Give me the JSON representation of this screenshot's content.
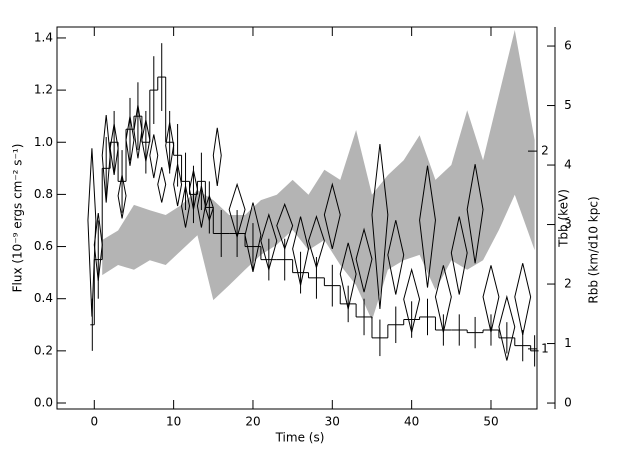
{
  "chart_data": {
    "type": "composite",
    "xlabel": "Time (s)",
    "ylabel": "Flux (10⁻⁹ ergs cm⁻² s⁻¹)",
    "y2label": "Rbb (km/d10 kpc)",
    "y3label": "Tbb (keV)",
    "xlim": [
      -4.7,
      55.8
    ],
    "xticks": [
      0,
      10,
      20,
      30,
      40,
      50
    ],
    "ylim": [
      -0.023,
      1.442
    ],
    "yticks": [
      {
        "value": 0,
        "label": "0.0"
      },
      {
        "value": 0.2,
        "label": "0.2"
      },
      {
        "value": 0.4,
        "label": "0.4"
      },
      {
        "value": 0.6,
        "label": "0.6"
      },
      {
        "value": 0.8,
        "label": "0.8"
      },
      {
        "value": 1,
        "label": "1.0"
      },
      {
        "value": 1.2,
        "label": "1.2"
      },
      {
        "value": 1.4,
        "label": "1.4"
      }
    ],
    "y2lim": [
      -0.1,
      6.32
    ],
    "y2ticks": [
      0,
      1,
      2,
      3,
      4,
      5,
      6
    ],
    "y3lim": [
      0.81,
      3.09
    ],
    "y3ticks": [
      1,
      2
    ],
    "y3scale": "log",
    "flux": {
      "color": "#000000",
      "bins": [
        -0.5,
        0,
        1,
        2,
        3,
        4,
        5,
        6,
        7,
        8,
        9,
        10,
        11,
        12,
        13,
        14,
        15,
        17,
        19,
        21,
        23,
        25,
        27,
        29,
        31,
        33,
        35,
        37,
        39,
        41,
        43,
        45,
        47,
        49,
        51,
        53,
        55,
        56
      ],
      "values": [
        0.3,
        0.55,
        0.9,
        1.0,
        0.85,
        1.05,
        1.1,
        1.0,
        1.2,
        1.25,
        1.0,
        0.95,
        0.85,
        0.8,
        0.85,
        0.75,
        0.65,
        0.65,
        0.6,
        0.55,
        0.55,
        0.5,
        0.48,
        0.45,
        0.38,
        0.33,
        0.25,
        0.3,
        0.32,
        0.33,
        0.28,
        0.28,
        0.27,
        0.28,
        0.25,
        0.22,
        0.2
      ],
      "errors": [
        0.1,
        0.15,
        0.12,
        0.12,
        0.12,
        0.12,
        0.13,
        0.12,
        0.13,
        0.13,
        0.12,
        0.12,
        0.11,
        0.11,
        0.11,
        0.1,
        0.09,
        0.09,
        0.09,
        0.08,
        0.08,
        0.08,
        0.08,
        0.08,
        0.07,
        0.07,
        0.07,
        0.07,
        0.07,
        0.07,
        0.06,
        0.06,
        0.06,
        0.06,
        0.06,
        0.06,
        0.06
      ]
    },
    "tbb": {
      "color": "#000000",
      "x": [
        -0.3,
        0.5,
        1.5,
        2.5,
        3.5,
        4.5,
        5.5,
        6.5,
        7.5,
        8.5,
        9.5,
        10.5,
        11.5,
        12.5,
        13.5,
        14.5,
        15.5,
        18,
        20,
        22,
        24,
        26,
        28,
        30,
        32,
        34,
        36,
        38,
        40,
        42,
        44,
        46,
        48,
        50,
        52,
        54
      ],
      "x_err": [
        0.5,
        0.5,
        0.5,
        0.5,
        0.5,
        0.5,
        0.5,
        0.5,
        0.5,
        0.5,
        0.5,
        0.5,
        0.5,
        0.5,
        0.5,
        0.5,
        0.5,
        1,
        1,
        1,
        1,
        1,
        1,
        1,
        1,
        1,
        1,
        1,
        1,
        1,
        1,
        1,
        1,
        1,
        1,
        1
      ],
      "y": [
        1.57,
        1.44,
        1.97,
        2.02,
        1.71,
        2.08,
        2.15,
        2.08,
        1.97,
        1.78,
        2.04,
        1.78,
        1.65,
        1.75,
        1.65,
        1.64,
        1.97,
        1.63,
        1.49,
        1.46,
        1.54,
        1.42,
        1.46,
        1.6,
        1.3,
        1.37,
        1.6,
        1.39,
        1.19,
        1.57,
        1.2,
        1.4,
        1.63,
        1.2,
        1.08,
        1.2
      ],
      "y_err": [
        0.45,
        0.17,
        0.3,
        0.18,
        0.13,
        0.18,
        0.2,
        0.15,
        0.15,
        0.11,
        0.17,
        0.13,
        0.12,
        0.12,
        0.12,
        0.07,
        0.2,
        0.15,
        0.18,
        0.14,
        0.12,
        0.17,
        0.13,
        0.18,
        0.15,
        0.15,
        0.45,
        0.18,
        0.13,
        0.33,
        0.14,
        0.19,
        0.28,
        0.14,
        0.12,
        0.15
      ]
    },
    "rbb": {
      "color": "#b4b4b4",
      "x": [
        1,
        3,
        5,
        7,
        9,
        11,
        13,
        15,
        17,
        19,
        21,
        23,
        25,
        27,
        29,
        31,
        33,
        35,
        37,
        39,
        41,
        43,
        45,
        47,
        49,
        51,
        53,
        55.5
      ],
      "upper": [
        2.74,
        2.9,
        3.33,
        3.24,
        3.16,
        3.33,
        3.58,
        3.41,
        3.16,
        3.16,
        3.41,
        3.5,
        3.75,
        3.5,
        3.92,
        3.75,
        4.59,
        3.5,
        3.83,
        4.08,
        4.5,
        3.75,
        4.0,
        4.92,
        4.08,
        5.18,
        6.27,
        4.42
      ],
      "lower": [
        2.15,
        2.32,
        2.24,
        2.4,
        2.32,
        2.57,
        2.82,
        1.73,
        1.98,
        2.24,
        2.49,
        2.66,
        2.91,
        2.57,
        2.74,
        2.32,
        1.98,
        1.39,
        2.24,
        2.4,
        2.49,
        1.9,
        2.4,
        2.24,
        2.4,
        2.91,
        3.5,
        2.57
      ]
    }
  }
}
